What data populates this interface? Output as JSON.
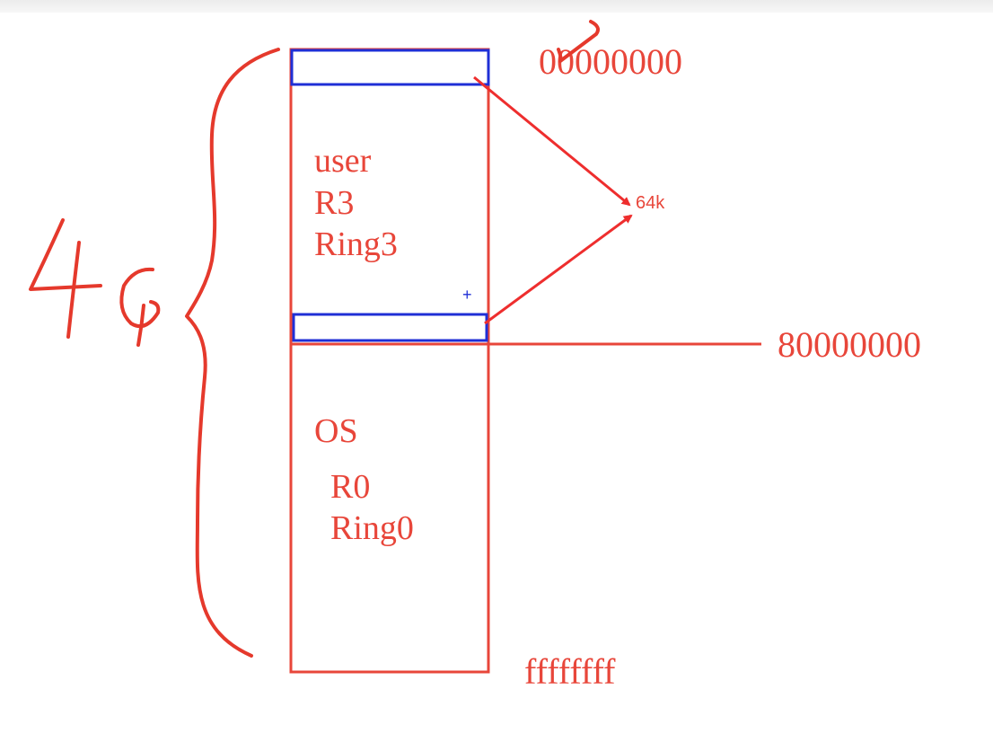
{
  "colors": {
    "red": "#e8463a",
    "blue": "#1f2fd6",
    "arrow_red": "#ee2e2e"
  },
  "labels": {
    "addr_start": "00000000",
    "addr_mid": "80000000",
    "addr_end": "ffffffff",
    "arrow_target": "64k",
    "size": "4G",
    "cursor": "+"
  },
  "regions": {
    "user": [
      "user",
      "R3",
      "Ring3"
    ],
    "os": [
      "OS",
      "R0",
      "Ring0"
    ]
  },
  "icons": {
    "checkmark": "checkmark-icon",
    "brace": "curly-brace-icon",
    "cursor": "crosshair-cursor-icon"
  }
}
